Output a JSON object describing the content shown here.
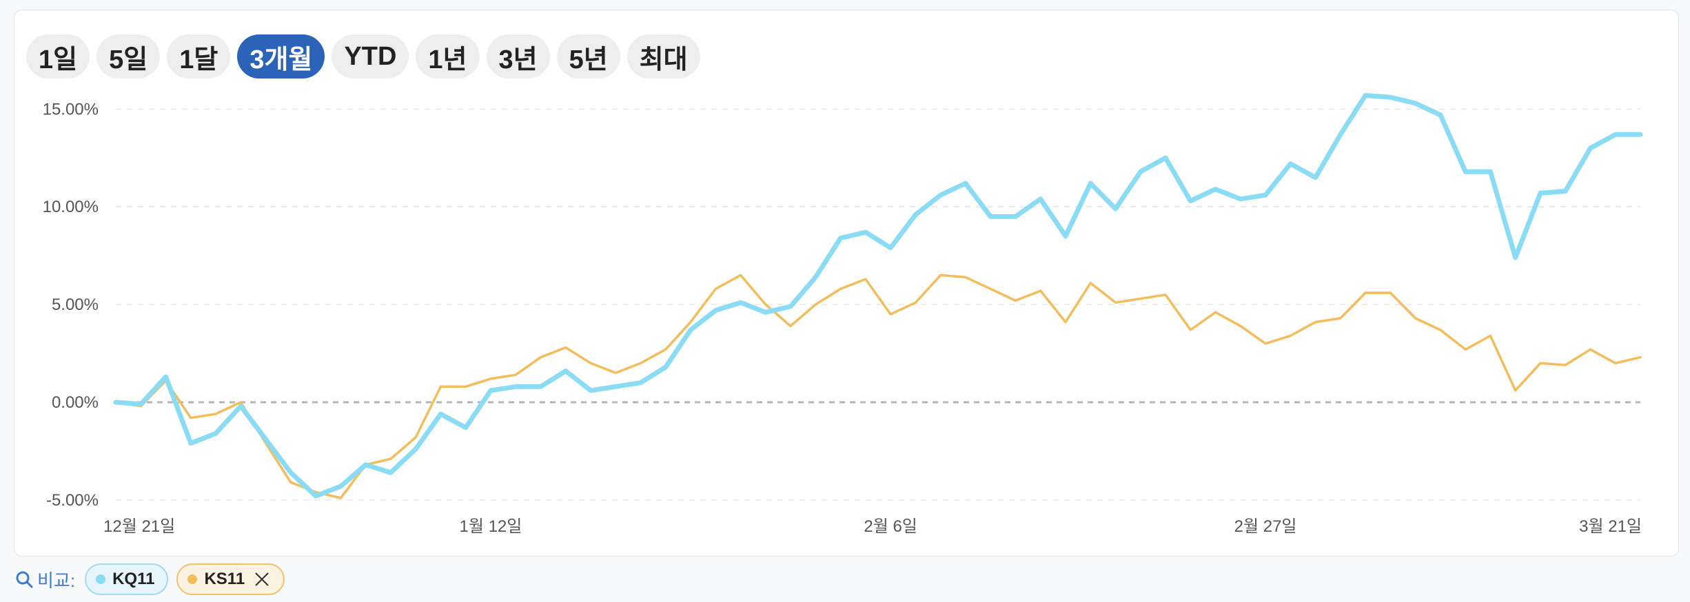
{
  "range_tabs": [
    {
      "label": "1일",
      "active": false
    },
    {
      "label": "5일",
      "active": false
    },
    {
      "label": "1달",
      "active": false
    },
    {
      "label": "3개월",
      "active": true
    },
    {
      "label": "YTD",
      "active": false
    },
    {
      "label": "1년",
      "active": false
    },
    {
      "label": "3년",
      "active": false
    },
    {
      "label": "5년",
      "active": false
    },
    {
      "label": "최대",
      "active": false
    }
  ],
  "compare": {
    "label": "비교:",
    "chips": [
      {
        "label": "KQ11",
        "color": "#8adcf5",
        "removable": false
      },
      {
        "label": "KS11",
        "color": "#f2bd5a",
        "removable": true
      }
    ]
  },
  "colors": {
    "active_tab": "#2a63b8",
    "kq11_line": "#8adcf5",
    "ks11_line": "#f2bd5a"
  },
  "chart_data": {
    "type": "line",
    "ylim": [
      -5.5,
      16.0
    ],
    "y_ticks": [
      15,
      10,
      5,
      0,
      -5
    ],
    "y_tick_labels": [
      "15.00%",
      "10.00%",
      "5.00%",
      "0.00%",
      "-5.00%"
    ],
    "x_tick_labels": [
      {
        "label": "12월 21일",
        "index": 0
      },
      {
        "label": "1월 12일",
        "index": 15
      },
      {
        "label": "2월 6일",
        "index": 31
      },
      {
        "label": "2월 27일",
        "index": 46
      },
      {
        "label": "3월 21일",
        "index": 62
      }
    ],
    "grid": "horizontal-dashed",
    "zero_line": "dashed",
    "series": [
      {
        "name": "KQ11",
        "color": "#8adcf5",
        "values": [
          0.0,
          -0.1,
          1.3,
          -2.1,
          -1.6,
          -0.2,
          -1.9,
          -3.6,
          -4.8,
          -4.3,
          -3.2,
          -3.6,
          -2.4,
          -0.6,
          -1.3,
          0.6,
          0.8,
          0.8,
          1.6,
          0.6,
          0.8,
          1.0,
          1.8,
          3.7,
          4.7,
          5.1,
          4.6,
          4.9,
          6.4,
          8.4,
          8.7,
          7.9,
          9.6,
          10.6,
          11.2,
          9.5,
          9.5,
          10.4,
          8.5,
          11.2,
          9.9,
          11.8,
          12.5,
          10.3,
          10.9,
          10.4,
          10.6,
          12.2,
          11.5,
          13.7,
          15.7,
          15.6,
          15.3,
          14.7,
          11.8,
          11.8,
          7.4,
          10.7,
          10.8,
          13.0,
          13.7,
          13.7
        ]
      },
      {
        "name": "KS11",
        "color": "#f2bd5a",
        "values": [
          0.0,
          -0.2,
          1.1,
          -0.8,
          -0.6,
          0.0,
          -2.1,
          -4.1,
          -4.6,
          -4.9,
          -3.2,
          -2.9,
          -1.8,
          0.8,
          0.8,
          1.2,
          1.4,
          2.3,
          2.8,
          2.0,
          1.5,
          2.0,
          2.7,
          4.1,
          5.8,
          6.5,
          5.0,
          3.9,
          5.0,
          5.8,
          6.3,
          4.5,
          5.1,
          6.5,
          6.4,
          5.8,
          5.2,
          5.7,
          4.1,
          6.1,
          5.1,
          5.3,
          5.5,
          3.7,
          4.6,
          3.9,
          3.0,
          3.4,
          4.1,
          4.3,
          5.6,
          5.6,
          4.3,
          3.7,
          2.7,
          3.4,
          0.6,
          2.0,
          1.9,
          2.7,
          2.0,
          2.3
        ]
      }
    ]
  }
}
